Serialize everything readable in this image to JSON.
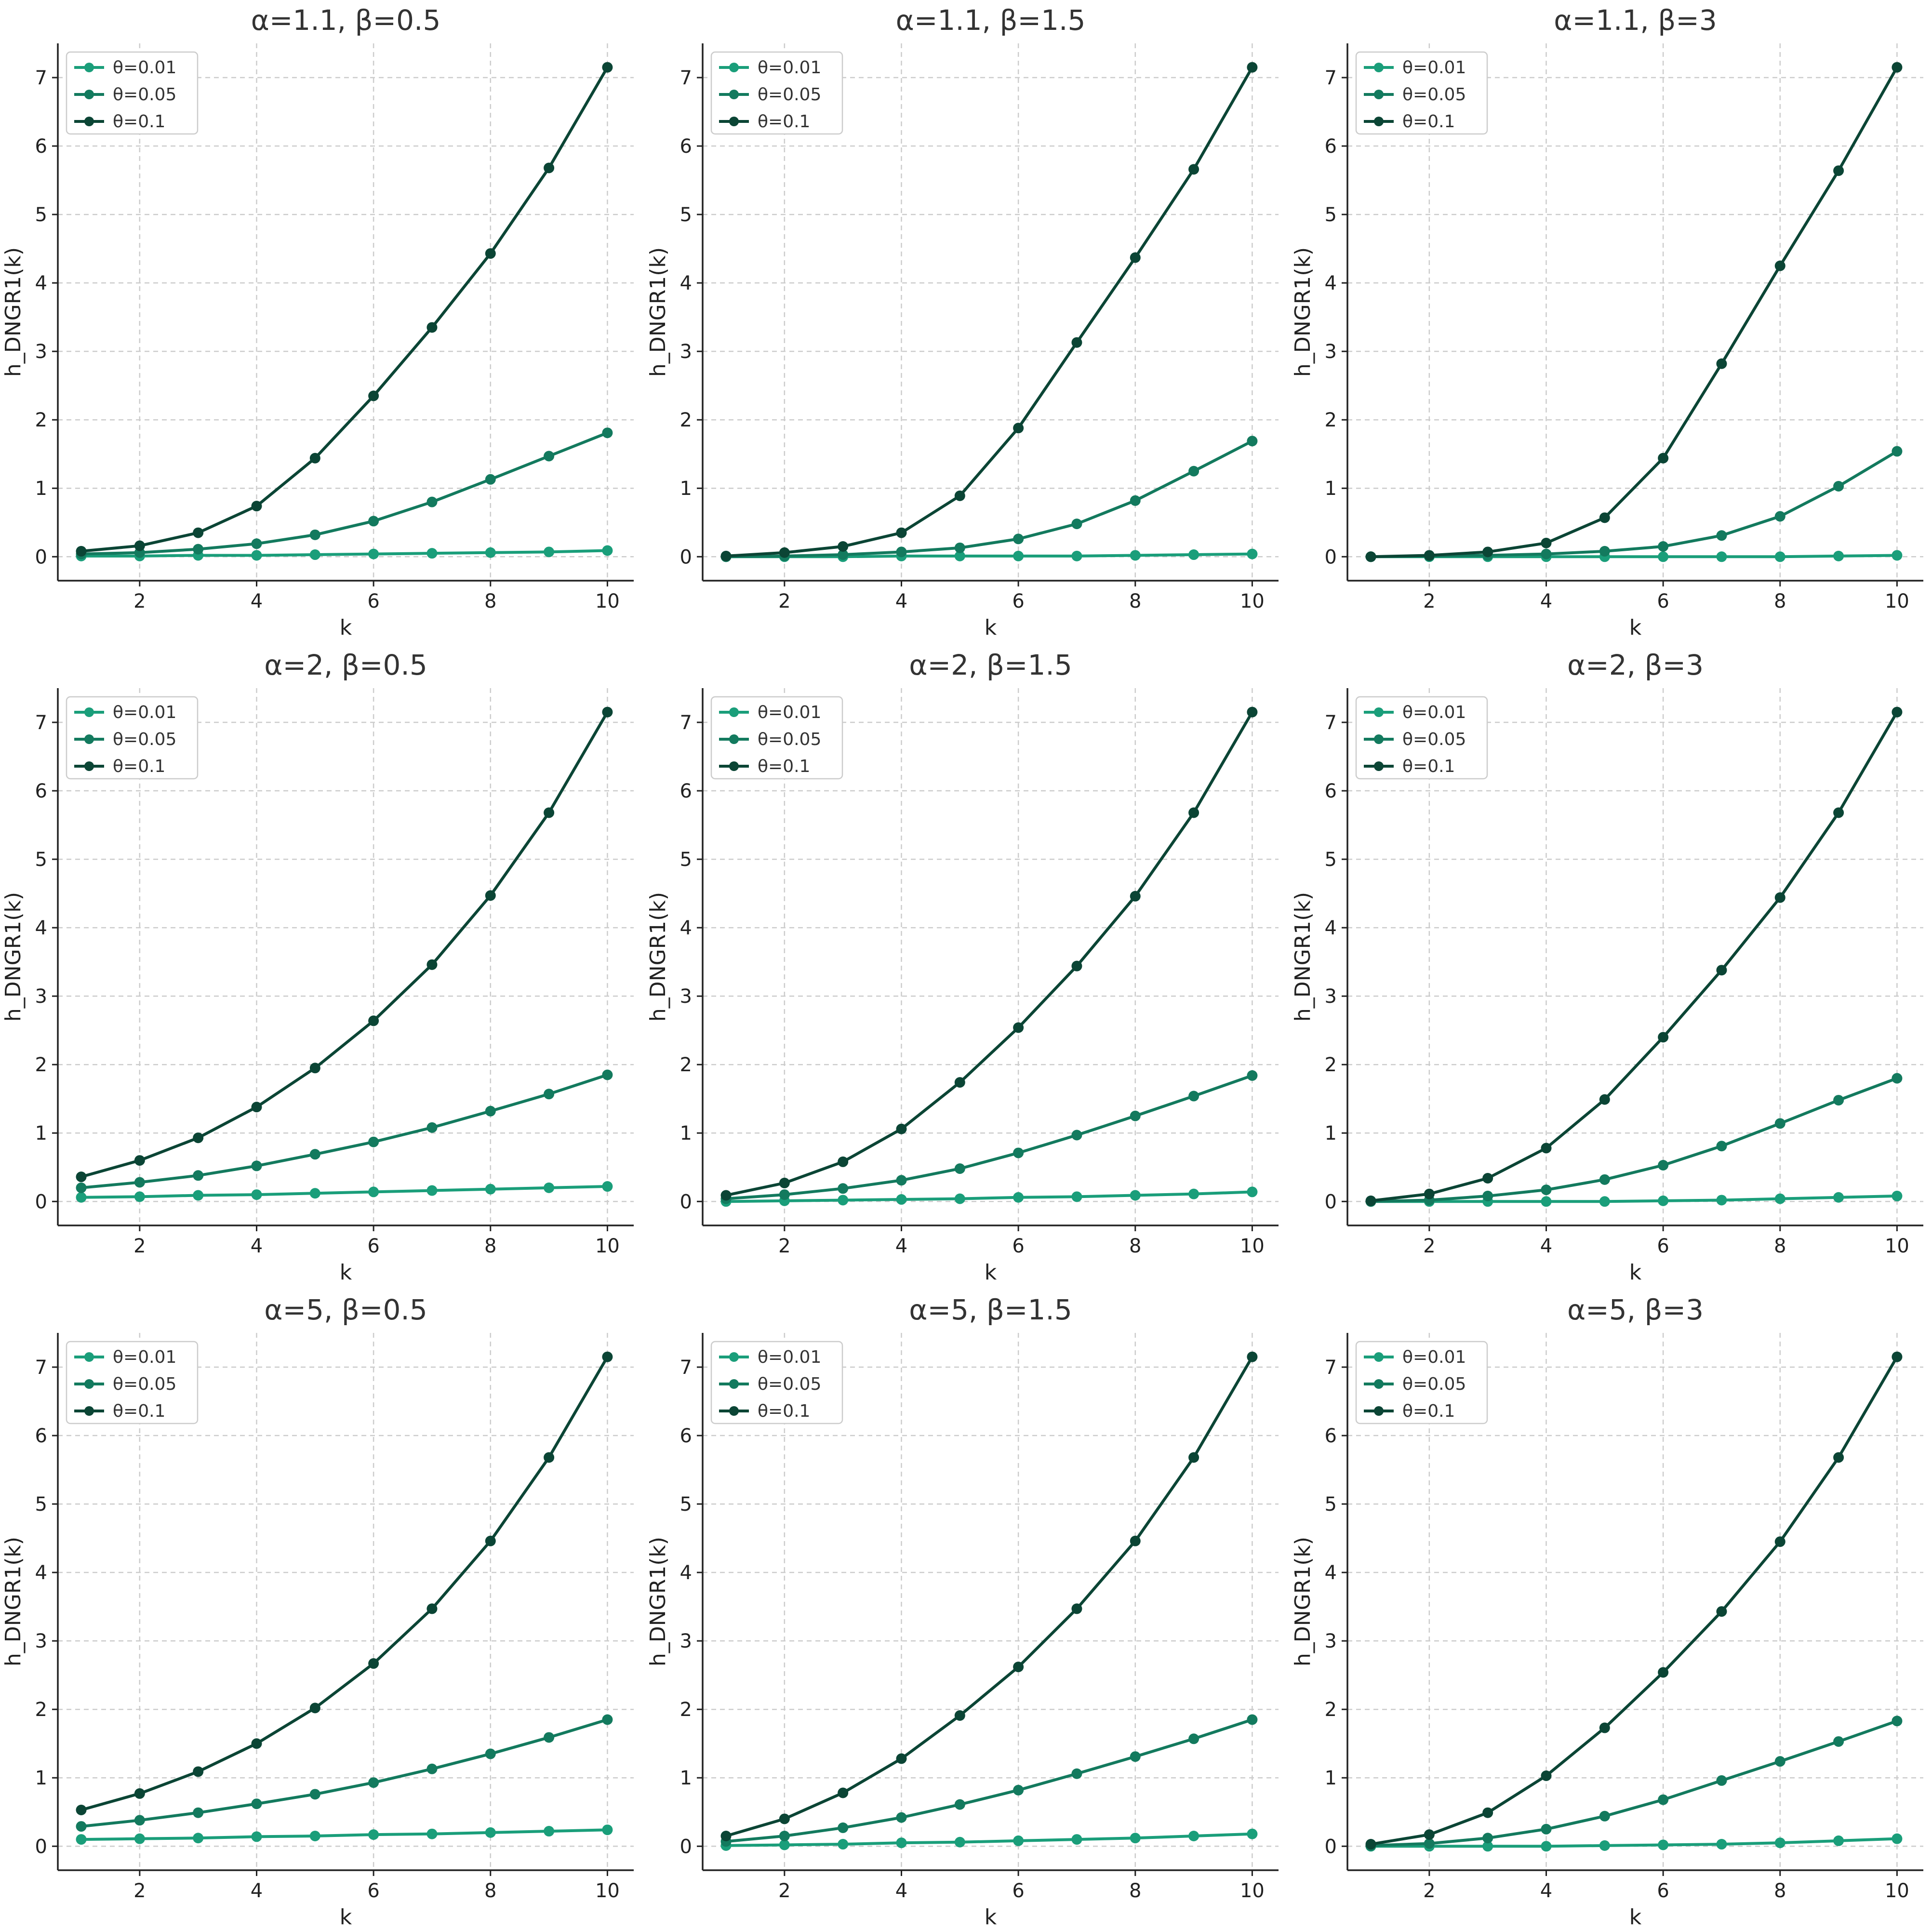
{
  "chart_data": {
    "type": "line",
    "layout": "3x3 grid",
    "xlabel": "k",
    "ylabel": "h_DNGR1(k)",
    "x": [
      1,
      2,
      3,
      4,
      5,
      6,
      7,
      8,
      9,
      10
    ],
    "xticks": [
      2,
      4,
      6,
      8,
      10
    ],
    "yticks": [
      0,
      1,
      2,
      3,
      4,
      5,
      6,
      7
    ],
    "xlim": [
      0.6,
      10.45
    ],
    "ylim": [
      -0.35,
      7.5
    ],
    "grid": true,
    "legend_position": "top-left",
    "series_styles": [
      {
        "name": "θ=0.01",
        "color": "#1a9e7a"
      },
      {
        "name": "θ=0.05",
        "color": "#137a5e"
      },
      {
        "name": "θ=0.1",
        "color": "#0b4535"
      }
    ],
    "panels": [
      {
        "title": "α=1.1, β=0.5",
        "series": [
          {
            "name": "θ=0.01",
            "values": [
              0.01,
              0.01,
              0.02,
              0.02,
              0.03,
              0.04,
              0.05,
              0.06,
              0.07,
              0.09
            ]
          },
          {
            "name": "θ=0.05",
            "values": [
              0.04,
              0.06,
              0.11,
              0.19,
              0.32,
              0.52,
              0.8,
              1.13,
              1.47,
              1.81
            ]
          },
          {
            "name": "θ=0.1",
            "values": [
              0.08,
              0.16,
              0.35,
              0.74,
              1.44,
              2.35,
              3.35,
              4.43,
              5.68,
              7.15
            ]
          }
        ]
      },
      {
        "title": "α=1.1, β=1.5",
        "series": [
          {
            "name": "θ=0.01",
            "values": [
              0.0,
              0.0,
              0.0,
              0.01,
              0.01,
              0.01,
              0.01,
              0.02,
              0.03,
              0.04
            ]
          },
          {
            "name": "θ=0.05",
            "values": [
              0.0,
              0.01,
              0.03,
              0.07,
              0.13,
              0.26,
              0.48,
              0.82,
              1.25,
              1.69
            ]
          },
          {
            "name": "θ=0.1",
            "values": [
              0.01,
              0.06,
              0.15,
              0.35,
              0.89,
              1.88,
              3.13,
              4.37,
              5.66,
              7.15
            ]
          }
        ]
      },
      {
        "title": "α=1.1, β=3",
        "series": [
          {
            "name": "θ=0.01",
            "values": [
              0.0,
              0.0,
              0.0,
              0.0,
              0.0,
              0.0,
              0.0,
              0.0,
              0.01,
              0.02
            ]
          },
          {
            "name": "θ=0.05",
            "values": [
              0.0,
              0.01,
              0.02,
              0.04,
              0.08,
              0.15,
              0.31,
              0.59,
              1.03,
              1.54
            ]
          },
          {
            "name": "θ=0.1",
            "values": [
              0.0,
              0.02,
              0.07,
              0.2,
              0.57,
              1.44,
              2.82,
              4.25,
              5.64,
              7.15
            ]
          }
        ]
      },
      {
        "title": "α=2, β=0.5",
        "series": [
          {
            "name": "θ=0.01",
            "values": [
              0.06,
              0.07,
              0.09,
              0.1,
              0.12,
              0.14,
              0.16,
              0.18,
              0.2,
              0.22
            ]
          },
          {
            "name": "θ=0.05",
            "values": [
              0.2,
              0.28,
              0.38,
              0.52,
              0.69,
              0.87,
              1.08,
              1.32,
              1.57,
              1.85
            ]
          },
          {
            "name": "θ=0.1",
            "values": [
              0.36,
              0.6,
              0.93,
              1.38,
              1.95,
              2.64,
              3.46,
              4.47,
              5.68,
              7.15
            ]
          }
        ]
      },
      {
        "title": "α=2, β=1.5",
        "series": [
          {
            "name": "θ=0.01",
            "values": [
              0.0,
              0.01,
              0.02,
              0.03,
              0.04,
              0.06,
              0.07,
              0.09,
              0.11,
              0.14
            ]
          },
          {
            "name": "θ=0.05",
            "values": [
              0.04,
              0.1,
              0.19,
              0.31,
              0.48,
              0.71,
              0.97,
              1.25,
              1.54,
              1.84
            ]
          },
          {
            "name": "θ=0.1",
            "values": [
              0.09,
              0.27,
              0.58,
              1.06,
              1.74,
              2.54,
              3.44,
              4.46,
              5.68,
              7.15
            ]
          }
        ]
      },
      {
        "title": "α=2, β=3",
        "series": [
          {
            "name": "θ=0.01",
            "values": [
              0.0,
              0.0,
              0.0,
              0.0,
              0.0,
              0.01,
              0.02,
              0.04,
              0.06,
              0.08
            ]
          },
          {
            "name": "θ=0.05",
            "values": [
              0.0,
              0.02,
              0.08,
              0.17,
              0.32,
              0.53,
              0.81,
              1.14,
              1.48,
              1.8
            ]
          },
          {
            "name": "θ=0.1",
            "values": [
              0.01,
              0.11,
              0.34,
              0.78,
              1.49,
              2.4,
              3.38,
              4.44,
              5.68,
              7.15
            ]
          }
        ]
      },
      {
        "title": "α=5, β=0.5",
        "series": [
          {
            "name": "θ=0.01",
            "values": [
              0.1,
              0.11,
              0.12,
              0.14,
              0.15,
              0.17,
              0.18,
              0.2,
              0.22,
              0.24
            ]
          },
          {
            "name": "θ=0.05",
            "values": [
              0.29,
              0.38,
              0.49,
              0.62,
              0.76,
              0.93,
              1.13,
              1.35,
              1.59,
              1.85
            ]
          },
          {
            "name": "θ=0.1",
            "values": [
              0.53,
              0.77,
              1.09,
              1.5,
              2.02,
              2.67,
              3.47,
              4.46,
              5.68,
              7.15
            ]
          }
        ]
      },
      {
        "title": "α=5, β=1.5",
        "series": [
          {
            "name": "θ=0.01",
            "values": [
              0.01,
              0.02,
              0.03,
              0.05,
              0.06,
              0.08,
              0.1,
              0.12,
              0.15,
              0.18
            ]
          },
          {
            "name": "θ=0.05",
            "values": [
              0.07,
              0.15,
              0.27,
              0.42,
              0.61,
              0.82,
              1.06,
              1.31,
              1.57,
              1.85
            ]
          },
          {
            "name": "θ=0.1",
            "values": [
              0.15,
              0.4,
              0.78,
              1.28,
              1.91,
              2.62,
              3.47,
              4.46,
              5.68,
              7.15
            ]
          }
        ]
      },
      {
        "title": "α=5, β=3",
        "series": [
          {
            "name": "θ=0.01",
            "values": [
              0.0,
              0.0,
              0.0,
              0.0,
              0.01,
              0.02,
              0.03,
              0.05,
              0.08,
              0.11
            ]
          },
          {
            "name": "θ=0.05",
            "values": [
              0.01,
              0.04,
              0.12,
              0.25,
              0.44,
              0.68,
              0.96,
              1.24,
              1.53,
              1.83
            ]
          },
          {
            "name": "θ=0.1",
            "values": [
              0.03,
              0.17,
              0.49,
              1.03,
              1.73,
              2.54,
              3.43,
              4.45,
              5.68,
              7.15
            ]
          }
        ]
      }
    ]
  }
}
